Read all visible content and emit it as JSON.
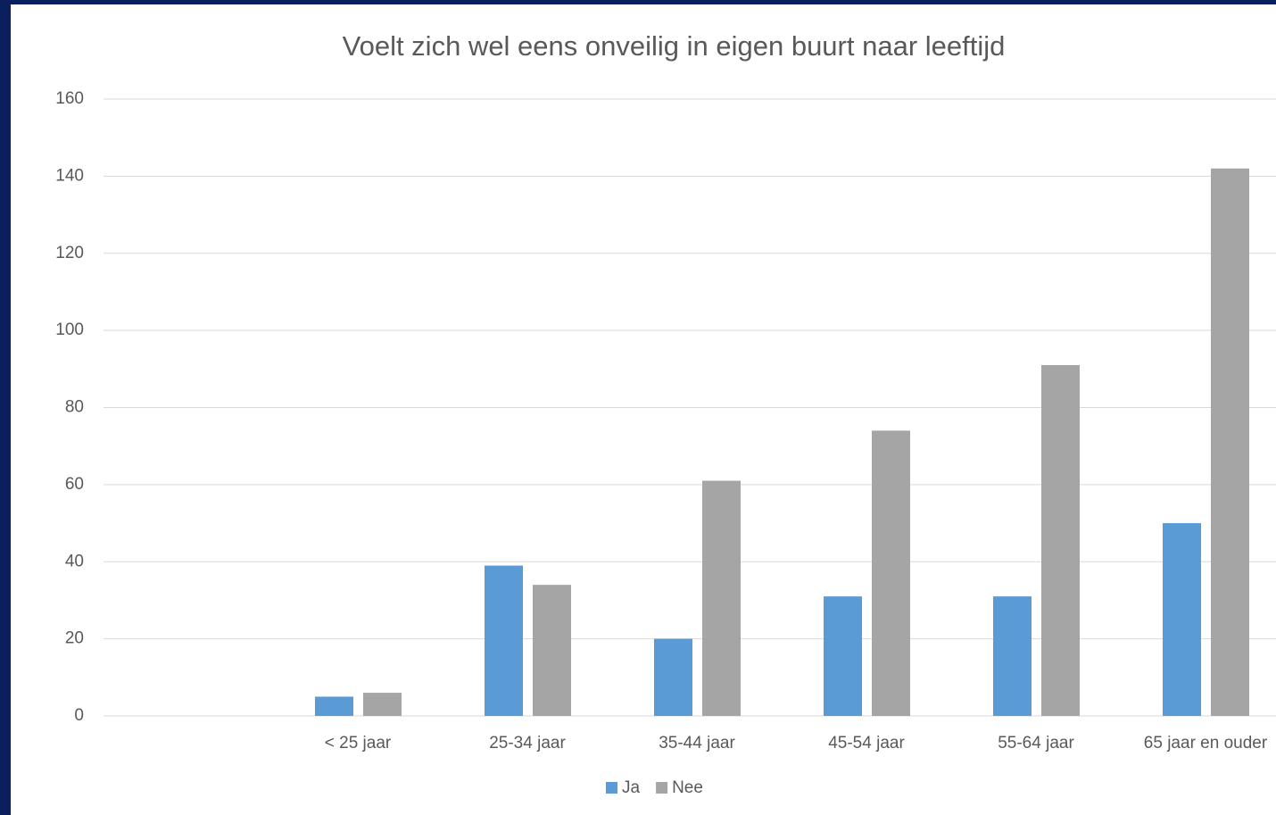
{
  "chart_data": {
    "type": "bar",
    "title": "Voelt zich wel eens onveilig in eigen buurt naar leeftijd",
    "categories": [
      null,
      "< 25 jaar",
      "25-34 jaar",
      "35-44 jaar",
      "45-54 jaar",
      "55-64 jaar",
      "65 jaar en ouder"
    ],
    "series": [
      {
        "name": "Ja",
        "color": "#5b9bd5",
        "values": [
          null,
          5,
          39,
          20,
          31,
          31,
          50
        ]
      },
      {
        "name": "Nee",
        "color": "#a5a5a5",
        "values": [
          null,
          6,
          34,
          61,
          74,
          91,
          142
        ]
      }
    ],
    "ylim": [
      0,
      160
    ],
    "yticks": [
      0,
      20,
      40,
      60,
      80,
      100,
      120,
      140,
      160
    ],
    "grid": true,
    "legend": "bottom"
  }
}
